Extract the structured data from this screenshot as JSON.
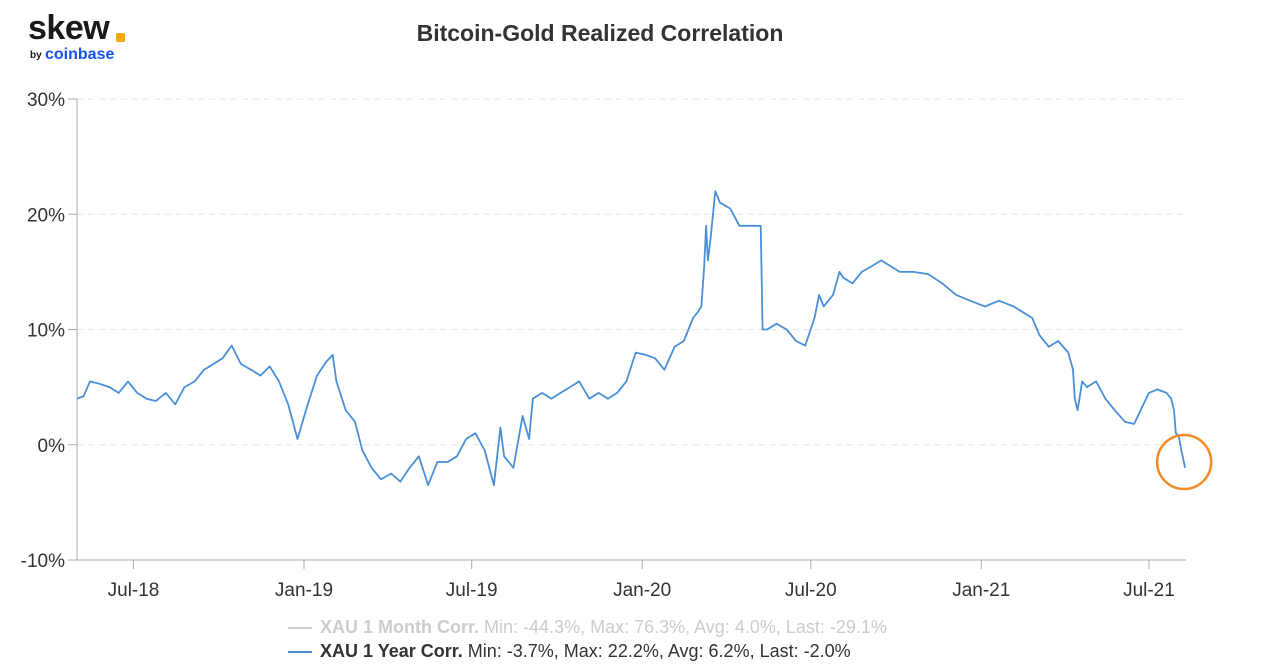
{
  "brand": {
    "word": "skew",
    "by": "by",
    "company": "coinbase"
  },
  "colors": {
    "series": "#4a8fd8",
    "inactive": "#cccccc",
    "highlight": "#f28c28",
    "grid": "#e6e6e6",
    "axis": "#aaaaaa"
  },
  "legend": [
    {
      "name": "XAU 1 Month Corr.",
      "stats": "Min: -44.3%, Max: 76.3%, Avg: 4.0%, Last: -29.1%",
      "state": "inactive"
    },
    {
      "name": "XAU 1 Year Corr.",
      "stats": "Min: -3.7%, Max: 22.2%, Avg: 6.2%, Last: -2.0%",
      "state": "active"
    }
  ],
  "chart_data": {
    "type": "line",
    "title": "Bitcoin-Gold Realized Correlation",
    "xlabel": "",
    "ylabel": "",
    "x_range": [
      "2018-05-01",
      "2021-08-10"
    ],
    "ylim": [
      -10,
      30
    ],
    "y_ticks": [
      {
        "value": 30,
        "label": "30%"
      },
      {
        "value": 20,
        "label": "20%"
      },
      {
        "value": 10,
        "label": "10%"
      },
      {
        "value": 0,
        "label": "0%"
      },
      {
        "value": -10,
        "label": "-10%"
      }
    ],
    "x_ticks": [
      {
        "value": "2018-07-01",
        "label": "Jul-18"
      },
      {
        "value": "2019-01-01",
        "label": "Jan-19"
      },
      {
        "value": "2019-07-01",
        "label": "Jul-19"
      },
      {
        "value": "2020-01-01",
        "label": "Jan-20"
      },
      {
        "value": "2020-07-01",
        "label": "Jul-20"
      },
      {
        "value": "2021-01-01",
        "label": "Jan-21"
      },
      {
        "value": "2021-07-01",
        "label": "Jul-21"
      }
    ],
    "grid": true,
    "legend_position": "bottom",
    "series": [
      {
        "name": "XAU 1 Year Corr.",
        "points": [
          [
            "2018-05-01",
            4.0
          ],
          [
            "2018-05-08",
            4.2
          ],
          [
            "2018-05-15",
            5.5
          ],
          [
            "2018-05-25",
            5.3
          ],
          [
            "2018-06-05",
            5.0
          ],
          [
            "2018-06-15",
            4.5
          ],
          [
            "2018-06-25",
            5.5
          ],
          [
            "2018-07-05",
            4.5
          ],
          [
            "2018-07-15",
            4.0
          ],
          [
            "2018-07-25",
            3.8
          ],
          [
            "2018-08-05",
            4.5
          ],
          [
            "2018-08-15",
            3.5
          ],
          [
            "2018-08-25",
            5.0
          ],
          [
            "2018-09-05",
            5.5
          ],
          [
            "2018-09-15",
            6.5
          ],
          [
            "2018-09-25",
            7.0
          ],
          [
            "2018-10-05",
            7.5
          ],
          [
            "2018-10-15",
            8.6
          ],
          [
            "2018-10-25",
            7.0
          ],
          [
            "2018-11-05",
            6.5
          ],
          [
            "2018-11-15",
            6.0
          ],
          [
            "2018-11-25",
            6.8
          ],
          [
            "2018-12-05",
            5.5
          ],
          [
            "2018-12-15",
            3.5
          ],
          [
            "2018-12-25",
            0.5
          ],
          [
            "2019-01-05",
            3.5
          ],
          [
            "2019-01-15",
            6.0
          ],
          [
            "2019-01-25",
            7.2
          ],
          [
            "2019-02-01",
            7.8
          ],
          [
            "2019-02-05",
            5.5
          ],
          [
            "2019-02-15",
            3.0
          ],
          [
            "2019-02-25",
            2.0
          ],
          [
            "2019-03-05",
            -0.5
          ],
          [
            "2019-03-15",
            -2.0
          ],
          [
            "2019-03-25",
            -3.0
          ],
          [
            "2019-04-05",
            -2.5
          ],
          [
            "2019-04-15",
            -3.2
          ],
          [
            "2019-04-25",
            -2.0
          ],
          [
            "2019-05-05",
            -1.0
          ],
          [
            "2019-05-15",
            -3.5
          ],
          [
            "2019-05-25",
            -1.5
          ],
          [
            "2019-06-05",
            -1.5
          ],
          [
            "2019-06-15",
            -1.0
          ],
          [
            "2019-06-25",
            0.5
          ],
          [
            "2019-07-05",
            1.0
          ],
          [
            "2019-07-15",
            -0.5
          ],
          [
            "2019-07-25",
            -3.5
          ],
          [
            "2019-08-01",
            1.5
          ],
          [
            "2019-08-05",
            -1.0
          ],
          [
            "2019-08-15",
            -2.0
          ],
          [
            "2019-08-25",
            2.5
          ],
          [
            "2019-09-01",
            0.5
          ],
          [
            "2019-09-05",
            4.0
          ],
          [
            "2019-09-15",
            4.5
          ],
          [
            "2019-09-25",
            4.0
          ],
          [
            "2019-10-05",
            4.5
          ],
          [
            "2019-10-15",
            5.0
          ],
          [
            "2019-10-25",
            5.5
          ],
          [
            "2019-11-05",
            4.0
          ],
          [
            "2019-11-15",
            4.5
          ],
          [
            "2019-11-25",
            4.0
          ],
          [
            "2019-12-05",
            4.5
          ],
          [
            "2019-12-15",
            5.5
          ],
          [
            "2019-12-25",
            8.0
          ],
          [
            "2020-01-05",
            7.8
          ],
          [
            "2020-01-15",
            7.5
          ],
          [
            "2020-01-25",
            6.5
          ],
          [
            "2020-02-05",
            8.5
          ],
          [
            "2020-02-15",
            9.0
          ],
          [
            "2020-02-25",
            11.0
          ],
          [
            "2020-03-01",
            11.5
          ],
          [
            "2020-03-05",
            12.0
          ],
          [
            "2020-03-08",
            15.5
          ],
          [
            "2020-03-10",
            19.0
          ],
          [
            "2020-03-12",
            16.0
          ],
          [
            "2020-03-15",
            18.0
          ],
          [
            "2020-03-20",
            22.0
          ],
          [
            "2020-03-25",
            21.0
          ],
          [
            "2020-04-05",
            20.5
          ],
          [
            "2020-04-15",
            19.0
          ],
          [
            "2020-04-25",
            19.0
          ],
          [
            "2020-05-08",
            19.0
          ],
          [
            "2020-05-10",
            10.0
          ],
          [
            "2020-05-15",
            10.0
          ],
          [
            "2020-05-25",
            10.5
          ],
          [
            "2020-06-05",
            10.0
          ],
          [
            "2020-06-15",
            9.0
          ],
          [
            "2020-06-25",
            8.6
          ],
          [
            "2020-07-05",
            11.0
          ],
          [
            "2020-07-10",
            13.0
          ],
          [
            "2020-07-15",
            12.0
          ],
          [
            "2020-07-25",
            13.0
          ],
          [
            "2020-08-01",
            15.0
          ],
          [
            "2020-08-05",
            14.5
          ],
          [
            "2020-08-15",
            14.0
          ],
          [
            "2020-08-25",
            15.0
          ],
          [
            "2020-09-05",
            15.5
          ],
          [
            "2020-09-15",
            16.0
          ],
          [
            "2020-09-25",
            15.5
          ],
          [
            "2020-10-05",
            15.0
          ],
          [
            "2020-10-20",
            15.0
          ],
          [
            "2020-11-05",
            14.8
          ],
          [
            "2020-11-20",
            14.0
          ],
          [
            "2020-12-05",
            13.0
          ],
          [
            "2020-12-20",
            12.5
          ],
          [
            "2021-01-05",
            12.0
          ],
          [
            "2021-01-20",
            12.5
          ],
          [
            "2021-02-05",
            12.0
          ],
          [
            "2021-02-15",
            11.5
          ],
          [
            "2021-02-25",
            11.0
          ],
          [
            "2021-03-05",
            9.5
          ],
          [
            "2021-03-15",
            8.5
          ],
          [
            "2021-03-25",
            9.0
          ],
          [
            "2021-04-05",
            8.0
          ],
          [
            "2021-04-10",
            6.5
          ],
          [
            "2021-04-12",
            4.0
          ],
          [
            "2021-04-15",
            3.0
          ],
          [
            "2021-04-20",
            5.5
          ],
          [
            "2021-04-25",
            5.0
          ],
          [
            "2021-05-05",
            5.5
          ],
          [
            "2021-05-15",
            4.0
          ],
          [
            "2021-05-25",
            3.0
          ],
          [
            "2021-06-05",
            2.0
          ],
          [
            "2021-06-15",
            1.8
          ],
          [
            "2021-06-25",
            3.5
          ],
          [
            "2021-07-01",
            4.5
          ],
          [
            "2021-07-10",
            4.8
          ],
          [
            "2021-07-20",
            4.5
          ],
          [
            "2021-07-25",
            4.0
          ],
          [
            "2021-07-28",
            3.0
          ],
          [
            "2021-07-30",
            1.0
          ],
          [
            "2021-08-02",
            0.8
          ],
          [
            "2021-08-05",
            -0.5
          ],
          [
            "2021-08-09",
            -2.0
          ]
        ]
      }
    ],
    "annotations": [
      {
        "type": "circle",
        "x": "2021-08-08",
        "y": -1.5
      }
    ]
  }
}
